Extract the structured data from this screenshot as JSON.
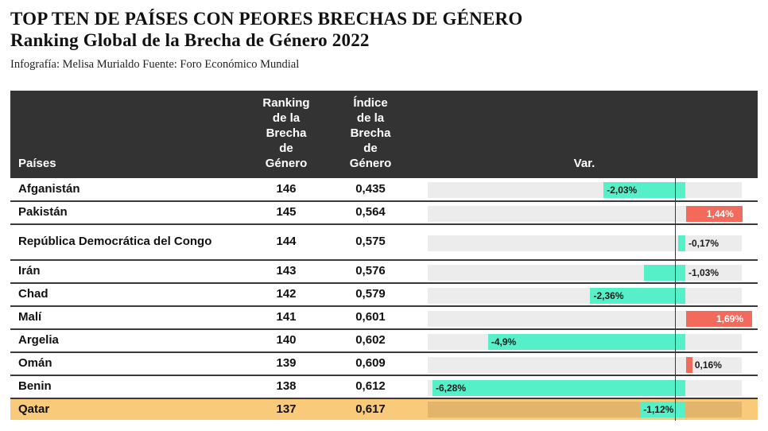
{
  "title_line1": "TOP TEN DE PAÍSES CON PEORES BRECHAS DE GÉNERO",
  "title_line2": "Ranking Global de la Brecha de Género 2022",
  "credit": "Infografía: Melisa Murialdo Fuente: Foro Económico Mundial",
  "columns": {
    "name": "Países",
    "rank": [
      "Ranking",
      "de la",
      "Brecha",
      "de",
      "Género"
    ],
    "index": [
      "Índice",
      "de la",
      "Brecha",
      "de",
      "Género"
    ],
    "var": "Var."
  },
  "colors": {
    "header_bg": "#333333",
    "negative": "#55f0c8",
    "positive": "#f26a5c",
    "highlight": "#f8ca7a"
  },
  "chart_data": {
    "type": "table",
    "var_axis_range": [
      -6.28,
      1.69
    ],
    "rows": [
      {
        "name": "Afganistán",
        "rank": "146",
        "index": "0,435",
        "var": -2.03,
        "var_label": "-2,03%"
      },
      {
        "name": "Pakistán",
        "rank": "145",
        "index": "0,564",
        "var": 1.44,
        "var_label": "1,44%"
      },
      {
        "name": "República Democrática del Congo",
        "rank": "144",
        "index": "0,575",
        "var": -0.17,
        "var_label": "-0,17%"
      },
      {
        "name": "Irán",
        "rank": "143",
        "index": "0,576",
        "var": -1.03,
        "var_label": "-1,03%"
      },
      {
        "name": "Chad",
        "rank": "142",
        "index": "0,579",
        "var": -2.36,
        "var_label": "-2,36%"
      },
      {
        "name": "Malí",
        "rank": "141",
        "index": "0,601",
        "var": 1.69,
        "var_label": "1,69%"
      },
      {
        "name": "Argelia",
        "rank": "140",
        "index": "0,602",
        "var": -4.9,
        "var_label": "-4,9%"
      },
      {
        "name": "Omán",
        "rank": "139",
        "index": "0,609",
        "var": 0.16,
        "var_label": "0,16%"
      },
      {
        "name": "Benin",
        "rank": "138",
        "index": "0,612",
        "var": -6.28,
        "var_label": "-6,28%"
      },
      {
        "name": "Qatar",
        "rank": "137",
        "index": "0,617",
        "var": -1.12,
        "var_label": "-1,12%",
        "highlight": true
      }
    ]
  }
}
